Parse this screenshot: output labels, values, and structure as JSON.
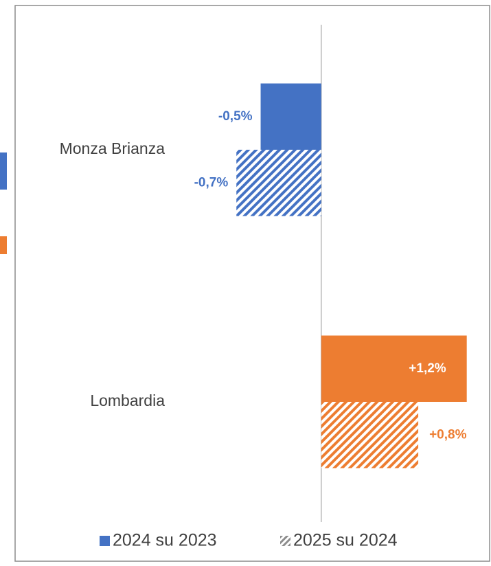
{
  "chart_data": {
    "type": "bar",
    "orientation": "horizontal",
    "categories": [
      "Monza Brianza",
      "Lombardia"
    ],
    "colors": [
      "#4472c4",
      "#ed7d31"
    ],
    "series": [
      {
        "name": "2024 su 2023",
        "pattern": "solid",
        "values": [
          -0.5,
          1.2
        ],
        "value_labels": [
          "-0,5%",
          "+1,2%"
        ]
      },
      {
        "name": "2025 su 2024",
        "pattern": "hatched",
        "values": [
          -0.7,
          0.8
        ],
        "value_labels": [
          "-0,7%",
          "+0,8%"
        ]
      }
    ],
    "xlim": [
      -1.5,
      1.4
    ]
  }
}
